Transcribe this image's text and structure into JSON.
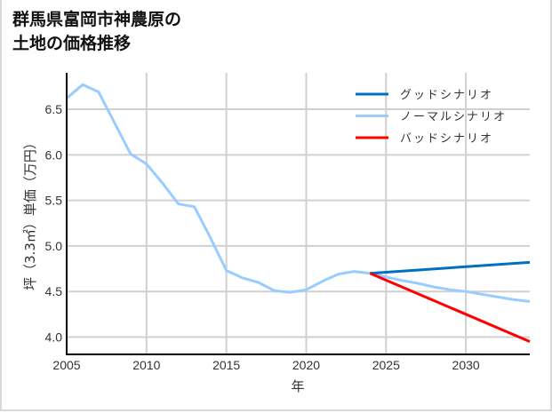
{
  "title": {
    "line1": "群馬県富岡市神農原の",
    "line2": "土地の価格推移"
  },
  "colors": {
    "good": "#0070c0",
    "normal": "#99ccff",
    "bad": "#ff0000",
    "grid": "#d0d0d0",
    "axis": "#000000"
  },
  "chart_data": {
    "type": "line",
    "title": "群馬県富岡市神農原の土地の価格推移",
    "xlabel": "年",
    "ylabel": "坪（3.3㎡）単価（万円）",
    "xlim": [
      2005,
      2034
    ],
    "ylim": [
      3.81,
      6.9
    ],
    "xticks": [
      2005,
      2010,
      2015,
      2020,
      2025,
      2030
    ],
    "yticks": [
      4.0,
      4.5,
      5.0,
      5.5,
      6.0,
      6.5
    ],
    "ytick_labels": [
      "4.0",
      "4.5",
      "5.0",
      "5.5",
      "6.0",
      "6.5"
    ],
    "grid": true,
    "legend_position": "upper right",
    "series": [
      {
        "name": "グッドシナリオ",
        "color": "#0070c0",
        "x": [
          2024,
          2034
        ],
        "values": [
          4.7,
          4.82
        ]
      },
      {
        "name": "ノーマルシナリオ",
        "color": "#99ccff",
        "x": [
          2005,
          2006,
          2007,
          2008,
          2009,
          2010,
          2011,
          2012,
          2013,
          2014,
          2015,
          2016,
          2017,
          2018,
          2019,
          2020,
          2021,
          2022,
          2023,
          2024,
          2025,
          2026,
          2027,
          2028,
          2029,
          2030,
          2031,
          2032,
          2033,
          2034
        ],
        "values": [
          6.62,
          6.77,
          6.69,
          6.35,
          6.01,
          5.9,
          5.69,
          5.46,
          5.43,
          5.09,
          4.73,
          4.65,
          4.6,
          4.51,
          4.49,
          4.52,
          4.61,
          4.69,
          4.72,
          4.7,
          4.66,
          4.62,
          4.59,
          4.55,
          4.52,
          4.5,
          4.47,
          4.44,
          4.41,
          4.39
        ]
      },
      {
        "name": "バッドシナリオ",
        "color": "#ff0000",
        "x": [
          2024,
          2034
        ],
        "values": [
          4.7,
          3.95
        ]
      }
    ]
  }
}
